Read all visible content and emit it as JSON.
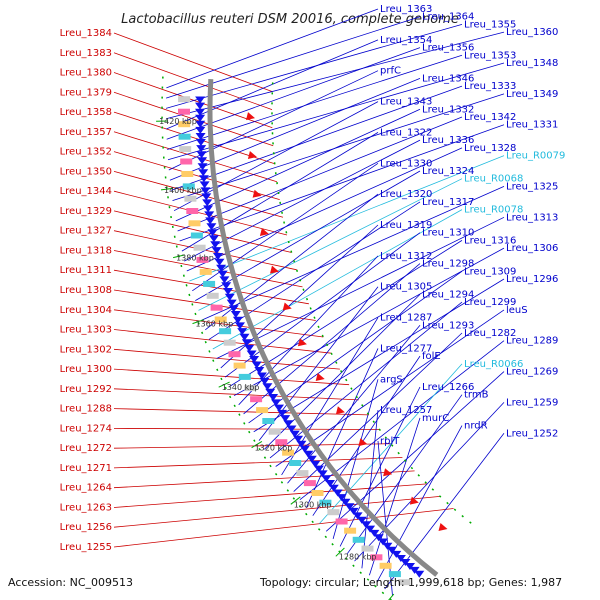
{
  "title": "Lactobacillus reuteri DSM 20016, complete genome",
  "footer": {
    "accession": "Accession: NC_009513",
    "topology": "Topology: circular; Length: 1,999,618 bp; Genes: 1,987"
  },
  "colors": {
    "left_label": "#cc0000",
    "right_label": "#0000cc",
    "rna_label": "#22bbdd",
    "backbone": "#888888",
    "forward_gene": "#ee1111",
    "reverse_gene": "#1111ee",
    "tick": "#00aa00"
  },
  "kbp_ticks": [
    "1420 kbp",
    "1400 kbp",
    "1380 kbp",
    "1360 kbp",
    "1340 kbp",
    "1320 kbp",
    "1300 kbp",
    "1280 kbp",
    "1260 kbp"
  ],
  "left_genes": [
    "Lreu_1384",
    "Lreu_1383",
    "Lreu_1380",
    "Lreu_1379",
    "Lreu_1358",
    "Lreu_1357",
    "Lreu_1352",
    "Lreu_1350",
    "Lreu_1344",
    "Lreu_1329",
    "Lreu_1327",
    "Lreu_1318",
    "Lreu_1311",
    "Lreu_1308",
    "Lreu_1304",
    "Lreu_1303",
    "Lreu_1302",
    "Lreu_1300",
    "Lreu_1292",
    "Lreu_1288",
    "Lreu_1274",
    "Lreu_1272",
    "Lreu_1271",
    "Lreu_1264",
    "Lreu_1263",
    "Lreu_1256",
    "Lreu_1255"
  ],
  "right_genes": [
    "Lreu_1363",
    "Lreu_1364",
    "Lreu_1355",
    "Lreu_1360",
    "Lreu_1354",
    "Lreu_1356",
    "Lreu_1353",
    "Lreu_1348",
    "prfC",
    "Lreu_1346",
    "Lreu_1333",
    "Lreu_1349",
    "Lreu_1343",
    "Lreu_1332",
    "Lreu_1342",
    "Lreu_1331",
    "Lreu_1322",
    "Lreu_1336",
    "Lreu_1328",
    "Lreu_R0079",
    "Lreu_1330",
    "Lreu_1324",
    "Lreu_R0068",
    "Lreu_1325",
    "Lreu_1320",
    "Lreu_1317",
    "Lreu_R0078",
    "Lreu_1313",
    "Lreu_1319",
    "Lreu_1310",
    "Lreu_1316",
    "Lreu_1306",
    "Lreu_1312",
    "Lreu_1298",
    "Lreu_1309",
    "Lreu_1296",
    "Lreu_1305",
    "Lreu_1294",
    "Lreu_1299",
    "leuS",
    "Lreu_1287",
    "Lreu_1293",
    "Lreu_1282",
    "Lreu_1289",
    "Lreu_1277",
    "folE",
    "Lreu_R0066",
    "Lreu_1269",
    "argS",
    "Lreu_1266",
    "trmB",
    "Lreu_1259",
    "Lreu_1257",
    "murC",
    "nrdR",
    "Lreu_1252",
    "rplT"
  ]
}
